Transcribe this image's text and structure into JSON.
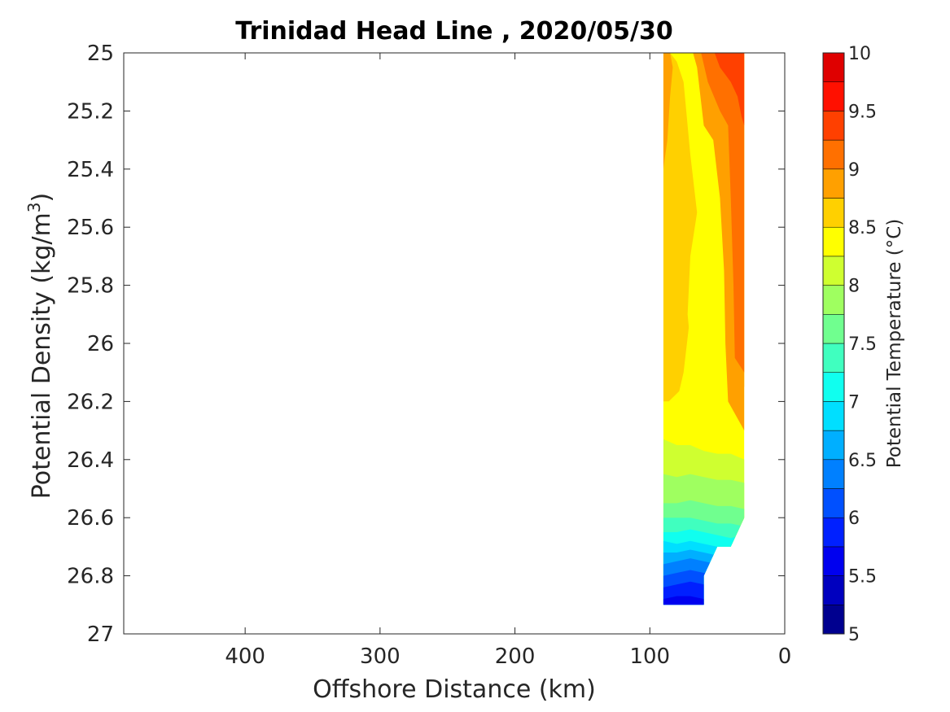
{
  "chart_data": {
    "type": "heatmap",
    "subtype": "filled-contour",
    "title": "Trinidad Head Line , 2020/05/30",
    "xlabel": "Offshore Distance (km)",
    "ylabel_main": "Potential Density (kg/m",
    "ylabel_sup": "3",
    "ylabel_tail": ")",
    "colorbar_label": "Potential Temperature (°C)",
    "x_reversed": true,
    "xlim": [
      490,
      0
    ],
    "ylim": [
      25,
      27
    ],
    "y_reversed": true,
    "xticks": [
      400,
      300,
      200,
      100,
      0
    ],
    "xtick_labels": [
      "400",
      "300",
      "200",
      "100",
      "0"
    ],
    "yticks": [
      25,
      25.2,
      25.4,
      25.6,
      25.8,
      26,
      26.2,
      26.4,
      26.6,
      26.8,
      27
    ],
    "ytick_labels": [
      "25",
      "25.2",
      "25.4",
      "25.6",
      "25.8",
      "26",
      "26.2",
      "26.4",
      "26.6",
      "26.8",
      "27"
    ],
    "colorbar_range": [
      5,
      10
    ],
    "colorbar_ticks": [
      5,
      5.5,
      6,
      6.5,
      7,
      7.5,
      8,
      8.5,
      9,
      9.5,
      10
    ],
    "colorbar_tick_labels": [
      "5",
      "5.5",
      "6",
      "6.5",
      "7",
      "7.5",
      "8",
      "8.5",
      "9",
      "9.5",
      "10"
    ],
    "levels": [
      5,
      5.25,
      5.5,
      5.75,
      6,
      6.25,
      6.5,
      6.75,
      7,
      7.25,
      7.5,
      7.75,
      8,
      8.25,
      8.5,
      8.75,
      9,
      9.25,
      9.5,
      9.75,
      10
    ],
    "level_colors": [
      "#00008f",
      "#0000bf",
      "#0000ef",
      "#0020ff",
      "#0050ff",
      "#0080ff",
      "#00afff",
      "#00dfff",
      "#10ffef",
      "#40ffbf",
      "#70ff8f",
      "#9fff60",
      "#cfff30",
      "#ffff00",
      "#ffd000",
      "#ffa000",
      "#ff7000",
      "#ff4000",
      "#ff1000",
      "#df0000",
      "#af0000"
    ],
    "regions": [
      {
        "level": 8.25,
        "points": [
          [
            90,
            25
          ],
          [
            30,
            25
          ],
          [
            30,
            26.9
          ],
          [
            90,
            26.9
          ]
        ]
      },
      {
        "level": 8.5,
        "points": [
          [
            90,
            25
          ],
          [
            85,
            25
          ],
          [
            80,
            25.03
          ],
          [
            75,
            25.1
          ],
          [
            70,
            25.35
          ],
          [
            65,
            25.55
          ],
          [
            70,
            25.7
          ],
          [
            72,
            25.9
          ],
          [
            68,
            26.1
          ],
          [
            75,
            26.15
          ],
          [
            86,
            26.2
          ],
          [
            90,
            26.2
          ],
          [
            90,
            25
          ]
        ]
      },
      {
        "level": 8.5,
        "points": [
          [
            62,
            25.1
          ],
          [
            55,
            25.15
          ],
          [
            45,
            25.2
          ],
          [
            40,
            25.5
          ],
          [
            37,
            25.9
          ],
          [
            36,
            26.1
          ],
          [
            30,
            26.15
          ],
          [
            30,
            25
          ],
          [
            60,
            25
          ],
          [
            62,
            25.1
          ]
        ]
      },
      {
        "level": 8.75,
        "points": [
          [
            90,
            25
          ],
          [
            90,
            25.4
          ],
          [
            87,
            25.3
          ],
          [
            85,
            25.15
          ],
          [
            83,
            25.05
          ],
          [
            85,
            25
          ],
          [
            90,
            25
          ]
        ]
      },
      {
        "level": 8.75,
        "points": [
          [
            68,
            25
          ],
          [
            65,
            25.05
          ],
          [
            60,
            25.25
          ],
          [
            53,
            25.3
          ],
          [
            48,
            25.5
          ],
          [
            45,
            25.75
          ],
          [
            44,
            26.0
          ],
          [
            42,
            26.2
          ],
          [
            30,
            26.3
          ],
          [
            30,
            25
          ],
          [
            68,
            25
          ]
        ]
      },
      {
        "level": 9,
        "points": [
          [
            62,
            25
          ],
          [
            57,
            25.1
          ],
          [
            48,
            25.2
          ],
          [
            42,
            25.25
          ],
          [
            40,
            25.5
          ],
          [
            38,
            25.8
          ],
          [
            37,
            26.05
          ],
          [
            30,
            26.1
          ],
          [
            30,
            25
          ],
          [
            62,
            25
          ]
        ]
      },
      {
        "level": 9.25,
        "points": [
          [
            52,
            25
          ],
          [
            48,
            25.05
          ],
          [
            40,
            25.1
          ],
          [
            35,
            25.15
          ],
          [
            32,
            25.22
          ],
          [
            30,
            25.25
          ],
          [
            30,
            25
          ],
          [
            52,
            25
          ]
        ]
      },
      {
        "level": 8.25,
        "points": [
          [
            90,
            26.2
          ],
          [
            86,
            26.2
          ],
          [
            80,
            26.2
          ],
          [
            75,
            26.1
          ],
          [
            70,
            25.9
          ],
          [
            68,
            25.7
          ],
          [
            65,
            25.55
          ],
          [
            60,
            25.6
          ],
          [
            58,
            25.8
          ],
          [
            55,
            26.0
          ],
          [
            55,
            26.2
          ],
          [
            90,
            26.3
          ]
        ]
      },
      {
        "level": 8,
        "points": [
          [
            90,
            26.33
          ],
          [
            80,
            26.35
          ],
          [
            70,
            26.35
          ],
          [
            60,
            26.37
          ],
          [
            50,
            26.38
          ],
          [
            40,
            26.38
          ],
          [
            30,
            26.4
          ],
          [
            30,
            26.9
          ],
          [
            90,
            26.9
          ]
        ]
      },
      {
        "level": 7.75,
        "points": [
          [
            90,
            26.45
          ],
          [
            80,
            26.46
          ],
          [
            70,
            26.45
          ],
          [
            60,
            26.46
          ],
          [
            50,
            26.47
          ],
          [
            40,
            26.47
          ],
          [
            30,
            26.48
          ],
          [
            30,
            26.9
          ],
          [
            90,
            26.9
          ]
        ]
      },
      {
        "level": 7.5,
        "points": [
          [
            90,
            26.55
          ],
          [
            80,
            26.55
          ],
          [
            70,
            26.54
          ],
          [
            60,
            26.55
          ],
          [
            50,
            26.56
          ],
          [
            40,
            26.56
          ],
          [
            30,
            26.57
          ],
          [
            30,
            26.9
          ],
          [
            90,
            26.9
          ]
        ]
      },
      {
        "level": 7.25,
        "points": [
          [
            90,
            26.6
          ],
          [
            80,
            26.6
          ],
          [
            70,
            26.6
          ],
          [
            60,
            26.61
          ],
          [
            50,
            26.62
          ],
          [
            40,
            26.62
          ],
          [
            30,
            26.63
          ],
          [
            30,
            26.9
          ],
          [
            90,
            26.9
          ]
        ]
      },
      {
        "level": 7,
        "points": [
          [
            90,
            26.65
          ],
          [
            80,
            26.65
          ],
          [
            70,
            26.64
          ],
          [
            60,
            26.65
          ],
          [
            50,
            26.66
          ],
          [
            40,
            26.67
          ],
          [
            30,
            26.66
          ],
          [
            30,
            26.9
          ],
          [
            90,
            26.9
          ]
        ]
      },
      {
        "level": 6.75,
        "points": [
          [
            90,
            26.68
          ],
          [
            80,
            26.69
          ],
          [
            70,
            26.68
          ],
          [
            60,
            26.69
          ],
          [
            50,
            26.7
          ],
          [
            40,
            26.72
          ],
          [
            30,
            26.72
          ],
          [
            30,
            26.9
          ],
          [
            90,
            26.9
          ]
        ]
      },
      {
        "level": 6.5,
        "points": [
          [
            90,
            26.72
          ],
          [
            80,
            26.72
          ],
          [
            70,
            26.71
          ],
          [
            60,
            26.72
          ],
          [
            50,
            26.73
          ],
          [
            40,
            26.75
          ],
          [
            30,
            26.75
          ],
          [
            30,
            26.9
          ],
          [
            90,
            26.9
          ]
        ]
      },
      {
        "level": 6.25,
        "points": [
          [
            90,
            26.76
          ],
          [
            80,
            26.75
          ],
          [
            70,
            26.74
          ],
          [
            60,
            26.75
          ],
          [
            50,
            26.76
          ],
          [
            40,
            26.78
          ],
          [
            30,
            26.78
          ],
          [
            30,
            26.9
          ],
          [
            90,
            26.9
          ]
        ]
      },
      {
        "level": 6,
        "points": [
          [
            90,
            26.8
          ],
          [
            80,
            26.79
          ],
          [
            70,
            26.78
          ],
          [
            60,
            26.79
          ],
          [
            50,
            26.8
          ],
          [
            40,
            26.82
          ],
          [
            30,
            26.82
          ],
          [
            30,
            26.9
          ],
          [
            90,
            26.9
          ]
        ]
      },
      {
        "level": 5.75,
        "points": [
          [
            90,
            26.84
          ],
          [
            80,
            26.83
          ],
          [
            70,
            26.82
          ],
          [
            60,
            26.83
          ],
          [
            50,
            26.84
          ],
          [
            40,
            26.86
          ],
          [
            30,
            26.86
          ],
          [
            30,
            26.9
          ],
          [
            90,
            26.9
          ]
        ]
      },
      {
        "level": 5.5,
        "points": [
          [
            90,
            26.88
          ],
          [
            80,
            26.87
          ],
          [
            70,
            26.87
          ],
          [
            60,
            26.88
          ],
          [
            50,
            26.89
          ],
          [
            40,
            26.9
          ],
          [
            30,
            26.9
          ],
          [
            30,
            26.9
          ],
          [
            90,
            26.9
          ]
        ]
      }
    ],
    "data_mask": [
      [
        90,
        25
      ],
      [
        30,
        25
      ],
      [
        30,
        26.6
      ],
      [
        40,
        26.7
      ],
      [
        50,
        26.7
      ],
      [
        60,
        26.8
      ],
      [
        60,
        26.9
      ],
      [
        90,
        26.9
      ]
    ]
  }
}
